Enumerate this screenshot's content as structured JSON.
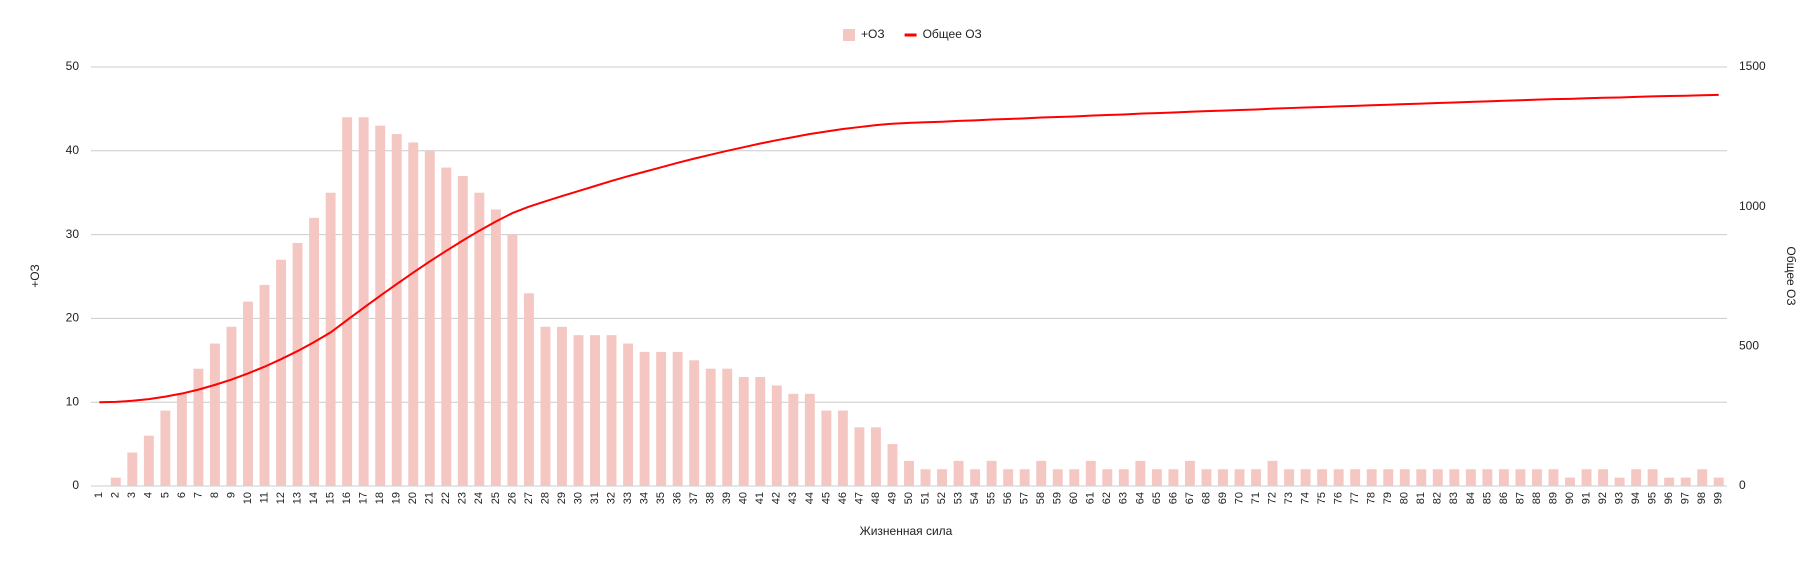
{
  "chart_data": {
    "type": "bar-line",
    "x_label": "Жизненная сила",
    "y_label": "+ОЗ",
    "y2_label": "Общее ОЗ",
    "categories": [
      1,
      2,
      3,
      4,
      5,
      6,
      7,
      8,
      9,
      10,
      11,
      12,
      13,
      14,
      15,
      16,
      17,
      18,
      19,
      20,
      21,
      22,
      23,
      24,
      25,
      26,
      27,
      28,
      29,
      30,
      31,
      32,
      33,
      34,
      35,
      36,
      37,
      38,
      39,
      40,
      41,
      42,
      43,
      44,
      45,
      46,
      47,
      48,
      49,
      50,
      51,
      52,
      53,
      54,
      55,
      56,
      57,
      58,
      59,
      60,
      61,
      62,
      63,
      64,
      65,
      66,
      67,
      68,
      69,
      70,
      71,
      72,
      73,
      74,
      75,
      76,
      77,
      78,
      79,
      80,
      81,
      82,
      83,
      84,
      85,
      86,
      87,
      88,
      89,
      90,
      91,
      92,
      93,
      94,
      95,
      96,
      97,
      98,
      99
    ],
    "series": [
      {
        "name": "+ОЗ",
        "type": "bar",
        "color": "#f4c7c3",
        "values": [
          0,
          1,
          4,
          6,
          9,
          11,
          14,
          17,
          19,
          22,
          24,
          27,
          29,
          32,
          35,
          44,
          44,
          43,
          42,
          41,
          40,
          38,
          37,
          35,
          33,
          30,
          23,
          19,
          19,
          18,
          18,
          18,
          17,
          16,
          16,
          16,
          15,
          14,
          14,
          13,
          13,
          12,
          11,
          11,
          9,
          9,
          7,
          7,
          5,
          3,
          2,
          2,
          3,
          2,
          3,
          2,
          2,
          3,
          2,
          2,
          3,
          2,
          2,
          3,
          2,
          2,
          3,
          2,
          2,
          2,
          2,
          3,
          2,
          2,
          2,
          2,
          2,
          2,
          2,
          2,
          2,
          2,
          2,
          2,
          2,
          2,
          2,
          2,
          2,
          1,
          2,
          2,
          1,
          2,
          2,
          1,
          1,
          2,
          1
        ]
      },
      {
        "name": "Общее ОЗ",
        "type": "line",
        "axis": "y2",
        "color": "#ff0000",
        "values": [
          300,
          301,
          305,
          311,
          320,
          331,
          345,
          362,
          381,
          403,
          427,
          454,
          483,
          515,
          550,
          594,
          638,
          681,
          723,
          764,
          804,
          842,
          879,
          914,
          947,
          977,
          1000,
          1019,
          1038,
          1056,
          1074,
          1092,
          1109,
          1125,
          1141,
          1157,
          1172,
          1186,
          1200,
          1213,
          1226,
          1238,
          1249,
          1260,
          1269,
          1278,
          1285,
          1292,
          1297,
          1300,
          1302,
          1304,
          1307,
          1309,
          1312,
          1314,
          1316,
          1319,
          1321,
          1323,
          1326,
          1328,
          1330,
          1333,
          1335,
          1337,
          1340,
          1342,
          1344,
          1346,
          1348,
          1351,
          1353,
          1355,
          1357,
          1359,
          1361,
          1363,
          1365,
          1367,
          1369,
          1371,
          1373,
          1375,
          1377,
          1379,
          1381,
          1383,
          1385,
          1386,
          1388,
          1390,
          1391,
          1393,
          1395,
          1396,
          1397,
          1399,
          1400
        ]
      }
    ],
    "ylim": [
      0,
      50
    ],
    "yticks": [
      0,
      10,
      20,
      30,
      40,
      50
    ],
    "y2lim": [
      0,
      1500
    ],
    "y2ticks": [
      0,
      500,
      1000,
      1500
    ],
    "grid": true,
    "legend": "top"
  }
}
